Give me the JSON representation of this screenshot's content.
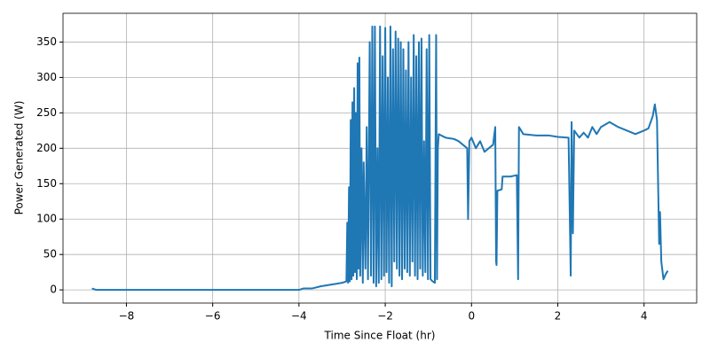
{
  "chart_data": {
    "type": "line",
    "xlabel": "Time Since Float (hr)",
    "ylabel": "Power Generated (W)",
    "x": [
      -8.8,
      -8.75,
      -8.7,
      -6,
      -4.0,
      -3.9,
      -3.7,
      -3.5,
      -3.2,
      -3.0,
      -2.9,
      -2.88,
      -2.86,
      -2.84,
      -2.82,
      -2.8,
      -2.78,
      -2.76,
      -2.74,
      -2.72,
      -2.7,
      -2.68,
      -2.66,
      -2.64,
      -2.62,
      -2.6,
      -2.58,
      -2.55,
      -2.52,
      -2.5,
      -2.46,
      -2.43,
      -2.4,
      -2.36,
      -2.33,
      -2.3,
      -2.27,
      -2.24,
      -2.21,
      -2.18,
      -2.15,
      -2.12,
      -2.09,
      -2.06,
      -2.03,
      -2.0,
      -1.97,
      -1.94,
      -1.91,
      -1.88,
      -1.85,
      -1.82,
      -1.79,
      -1.76,
      -1.73,
      -1.7,
      -1.67,
      -1.64,
      -1.61,
      -1.58,
      -1.55,
      -1.52,
      -1.49,
      -1.46,
      -1.43,
      -1.4,
      -1.37,
      -1.34,
      -1.31,
      -1.28,
      -1.25,
      -1.22,
      -1.19,
      -1.16,
      -1.13,
      -1.1,
      -1.07,
      -1.04,
      -1.01,
      -0.98,
      -0.95,
      -0.9,
      -0.85,
      -0.82,
      -0.8,
      -0.78,
      -0.76,
      -0.7,
      -0.6,
      -0.4,
      -0.3,
      -0.2,
      -0.1,
      -0.08,
      -0.05,
      0,
      0.1,
      0.2,
      0.3,
      0.4,
      0.5,
      0.55,
      0.57,
      0.58,
      0.6,
      0.7,
      0.72,
      0.9,
      1.05,
      1.08,
      1.1,
      1.2,
      1.5,
      1.8,
      2.0,
      2.25,
      2.3,
      2.32,
      2.35,
      2.38,
      2.5,
      2.6,
      2.7,
      2.8,
      2.9,
      3.0,
      3.2,
      3.4,
      3.6,
      3.8,
      4.0,
      4.1,
      4.2,
      4.25,
      4.3,
      4.35,
      4.37,
      4.4,
      4.45,
      4.5,
      4.55
    ],
    "series": [
      {
        "color": "#1f77b4",
        "values": [
          2,
          1,
          0,
          0,
          0,
          2,
          2,
          5,
          8,
          10,
          12,
          95,
          10,
          145,
          12,
          240,
          15,
          265,
          20,
          285,
          25,
          250,
          15,
          320,
          30,
          328,
          20,
          200,
          10,
          180,
          30,
          230,
          15,
          350,
          20,
          372,
          10,
          372,
          5,
          200,
          10,
          372,
          15,
          330,
          20,
          370,
          25,
          300,
          10,
          372,
          5,
          340,
          40,
          365,
          30,
          355,
          20,
          350,
          15,
          340,
          30,
          310,
          25,
          350,
          20,
          300,
          40,
          360,
          20,
          330,
          15,
          350,
          30,
          355,
          20,
          210,
          25,
          340,
          15,
          360,
          15,
          12,
          10,
          360,
          15,
          200,
          220,
          218,
          215,
          213,
          210,
          205,
          200,
          100,
          210,
          215,
          200,
          210,
          195,
          200,
          205,
          230,
          40,
          35,
          140,
          142,
          160,
          160,
          162,
          15,
          230,
          220,
          218,
          218,
          216,
          215,
          20,
          237,
          80,
          225,
          215,
          222,
          215,
          230,
          220,
          230,
          237,
          230,
          225,
          220,
          225,
          228,
          245,
          262,
          240,
          65,
          110,
          40,
          15,
          22,
          27
        ]
      }
    ],
    "xlim": [
      -9.47,
      5.22
    ],
    "ylim": [
      -18.6,
      390.6
    ],
    "xticks": [
      {
        "value": -8,
        "label": "−8"
      },
      {
        "value": -6,
        "label": "−6"
      },
      {
        "value": -4,
        "label": "−4"
      },
      {
        "value": -2,
        "label": "−2"
      },
      0,
      2,
      4
    ],
    "yticks": [
      0,
      50,
      100,
      150,
      200,
      250,
      300,
      350
    ],
    "grid": true
  }
}
